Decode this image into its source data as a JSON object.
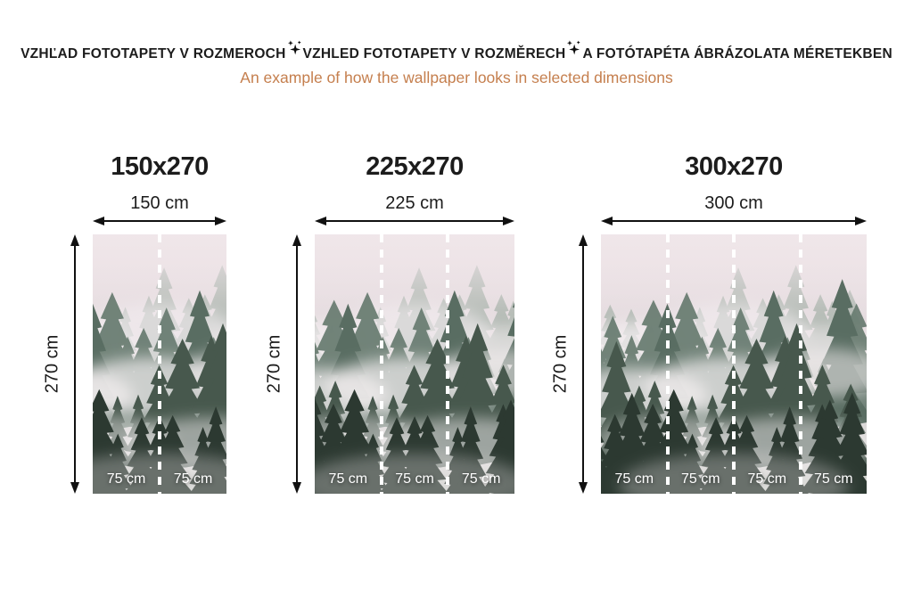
{
  "header": {
    "title_parts": [
      "VZHĽAD FOTOTAPETY V ROZMEROCH",
      "VZHLED FOTOTAPETY V ROZMĚRECH",
      "A FOTÓTAPÉTA ÁBRÁZOLATA MÉRETEKBEN"
    ],
    "separator_icon": "sparkle-icon",
    "subtitle": "An example of how the wallpaper looks in selected dimensions"
  },
  "colors": {
    "title_text": "#1c1c1c",
    "subtitle_text": "#c57f4e",
    "arrow": "#111111",
    "strip_divider": "#ffffff",
    "strip_label_text": "#ffffff"
  },
  "panels": [
    {
      "title": "150x270",
      "width_label": "150 cm",
      "height_label": "270 cm",
      "strips": [
        "75 cm",
        "75 cm"
      ]
    },
    {
      "title": "225x270",
      "width_label": "225 cm",
      "height_label": "270 cm",
      "strips": [
        "75 cm",
        "75 cm",
        "75 cm"
      ]
    },
    {
      "title": "300x270",
      "width_label": "300 cm",
      "height_label": "270 cm",
      "strips": [
        "75 cm",
        "75 cm",
        "75 cm",
        "75 cm"
      ]
    }
  ]
}
